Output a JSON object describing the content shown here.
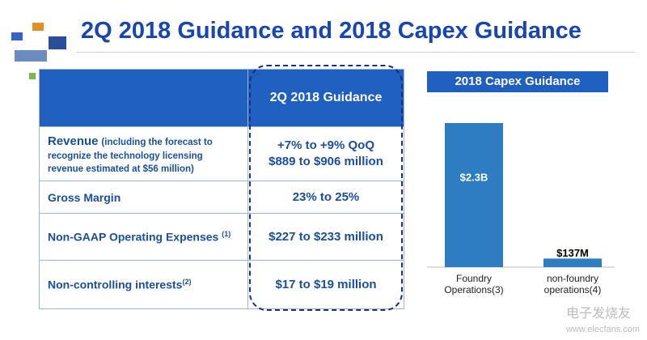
{
  "header": {
    "title": "2Q 2018 Guidance and 2018 Capex Guidance"
  },
  "table": {
    "header": "2Q 2018 Guidance",
    "rows": [
      {
        "label": "Revenue",
        "note": "(including the forecast to recognize the technology licensing revenue estimated at $56 million)",
        "value": [
          "+7% to +9% QoQ",
          "$889 to $906 million"
        ]
      },
      {
        "label": "Gross Margin",
        "value": [
          "23% to 25%"
        ]
      },
      {
        "label": "Non-GAAP Operating Expenses",
        "sup": "(1)",
        "value": [
          "$227 to $233 million"
        ]
      },
      {
        "label": "Non-controlling interests",
        "sup": "(2)",
        "value": [
          "$17 to $19 million"
        ]
      }
    ]
  },
  "chart_data": {
    "type": "bar",
    "title": "2018 Capex Guidance",
    "categories": [
      "Foundry Operations(3)",
      "non-foundry operations(4)"
    ],
    "values": [
      2300,
      137
    ],
    "value_labels": [
      "$2.3B",
      "$137M"
    ],
    "color": "#2f7dc1"
  },
  "watermark": [
    "电子发烧友",
    "www.elecfans.com"
  ]
}
